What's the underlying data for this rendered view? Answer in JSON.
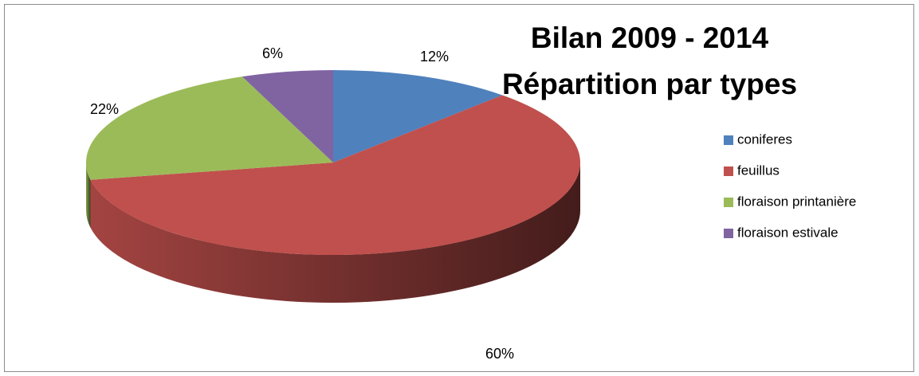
{
  "chart_data": {
    "type": "pie3d",
    "title": "Bilan 2009 - 2014",
    "subtitle": "Répartition par types",
    "categories": [
      "coniferes",
      "feuillus",
      "floraison printanière",
      "floraison estivale"
    ],
    "values": [
      12,
      60,
      22,
      6
    ],
    "value_labels": [
      "12%",
      "60%",
      "22%",
      "6%"
    ],
    "colors": [
      "#4f81bd",
      "#c0504d",
      "#9bbb59",
      "#8064a2"
    ],
    "legend": "right"
  }
}
